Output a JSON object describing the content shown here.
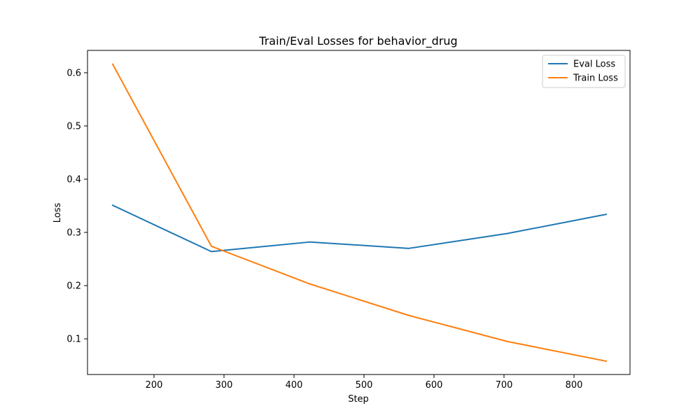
{
  "chart_data": {
    "type": "line",
    "title": "Train/Eval Losses for behavior_drug",
    "xlabel": "Step",
    "ylabel": "Loss",
    "xlim": [
      105,
      880
    ],
    "ylim": [
      0.033,
      0.642
    ],
    "xticks": [
      200,
      300,
      400,
      500,
      600,
      700,
      800
    ],
    "yticks": [
      0.1,
      0.2,
      0.3,
      0.4,
      0.5,
      0.6
    ],
    "x": [
      141,
      282,
      423,
      564,
      705,
      846
    ],
    "series": [
      {
        "name": "Eval Loss",
        "color": "#1f77b4",
        "values": [
          0.351,
          0.264,
          0.282,
          0.27,
          0.298,
          0.334
        ]
      },
      {
        "name": "Train Loss",
        "color": "#ff7f0e",
        "values": [
          0.616,
          0.274,
          0.203,
          0.144,
          0.095,
          0.058
        ]
      }
    ],
    "legend": "top-right",
    "grid": false
  }
}
